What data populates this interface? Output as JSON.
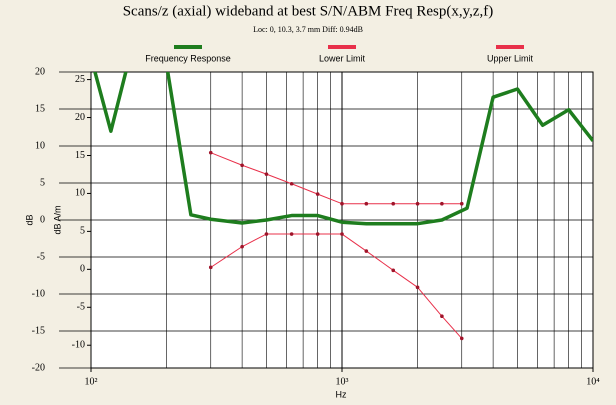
{
  "chart_data": {
    "type": "line",
    "title": "Scans/z (axial) wideband at best S/N/ABM Freq Resp(x,y,z,f)",
    "subtitle": "Loc: 0, 10.3, 3.7 mm Diff: 0.94dB",
    "xlabel": "Hz",
    "ylabel": "dB",
    "y2label": "dB A/m",
    "xscale": "log",
    "xlim": [
      100,
      10000
    ],
    "xticks": [
      {
        "value": 100,
        "label": "10²"
      },
      {
        "value": 1000,
        "label": "10³"
      },
      {
        "value": 10000,
        "label": "10⁴"
      }
    ],
    "ylim": [
      -20,
      20
    ],
    "yticks": [
      -20,
      -15,
      -10,
      -5,
      0,
      5,
      10,
      15,
      20
    ],
    "y2lim": [
      -13,
      26
    ],
    "y2ticks": [
      -10,
      -5,
      0,
      5,
      10,
      15,
      20,
      25
    ],
    "grid": true,
    "legend": "top",
    "series": [
      {
        "name": "Frequency Response",
        "color": "#1e7d1e",
        "markers": false,
        "x": [
          100,
          120,
          140,
          200,
          250,
          300,
          400,
          500,
          630,
          800,
          1000,
          1250,
          1600,
          2000,
          2500,
          3150,
          4000,
          5000,
          6300,
          8000,
          10000
        ],
        "values": [
          22,
          12,
          21,
          21,
          0.7,
          0.1,
          -0.4,
          0,
          0.6,
          0.6,
          -0.3,
          -0.5,
          -0.5,
          -0.5,
          0,
          1.6,
          16.6,
          17.7,
          12.8,
          14.9,
          10.7
        ]
      },
      {
        "name": "Lower Limit",
        "color": "#e8304a",
        "markers": true,
        "x": [
          300,
          400,
          500,
          630,
          800,
          1000,
          1250,
          1600,
          2000,
          2500,
          3000
        ],
        "values": [
          -6.4,
          -3.6,
          -1.9,
          -1.9,
          -1.9,
          -1.9,
          -4.2,
          -6.8,
          -9.1,
          -13,
          -16
        ]
      },
      {
        "name": "Upper Limit",
        "color": "#e8304a",
        "markers": true,
        "x": [
          300,
          400,
          500,
          630,
          800,
          1000,
          1250,
          1600,
          2000,
          2500,
          3000
        ],
        "values": [
          9.1,
          7.4,
          6.2,
          4.9,
          3.5,
          2.2,
          2.2,
          2.2,
          2.2,
          2.2,
          2.2
        ]
      }
    ]
  }
}
